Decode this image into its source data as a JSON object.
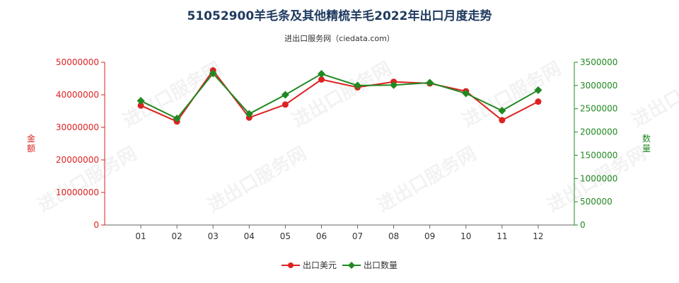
{
  "title": "51052900羊毛条及其他精梳羊毛2022年出口月度走势",
  "subtitle": "进出口服务网（ciedata.com）",
  "watermark": "进出口服务网",
  "colors": {
    "amount": "#dd2222",
    "quantity": "#228822",
    "title": "#1f3a5f"
  },
  "chart_data": {
    "type": "line",
    "categories": [
      "01",
      "02",
      "03",
      "04",
      "05",
      "06",
      "07",
      "08",
      "09",
      "10",
      "11",
      "12"
    ],
    "y_left": {
      "label": "金额",
      "min": 0,
      "max": 50000000,
      "ticks": [
        "0",
        "10000000",
        "20000000",
        "30000000",
        "40000000",
        "50000000"
      ]
    },
    "y_right": {
      "label": "数量",
      "min": 0,
      "max": 3500000,
      "ticks": [
        "0",
        "500000",
        "1000000",
        "1500000",
        "2000000",
        "2500000",
        "3000000",
        "3500000"
      ]
    },
    "series": [
      {
        "name": "出口美元",
        "axis": "left",
        "color": "#dd2222",
        "marker": "circle",
        "values": [
          36700000,
          31800000,
          47500000,
          33000000,
          37000000,
          44700000,
          42300000,
          44000000,
          43500000,
          41100000,
          32200000,
          37900000
        ]
      },
      {
        "name": "出口数量",
        "axis": "right",
        "color": "#228822",
        "marker": "diamond",
        "values": [
          2670000,
          2290000,
          3260000,
          2390000,
          2800000,
          3250000,
          3000000,
          3010000,
          3060000,
          2830000,
          2460000,
          2900000
        ]
      }
    ],
    "legend_position": "bottom-center",
    "grid": false
  }
}
